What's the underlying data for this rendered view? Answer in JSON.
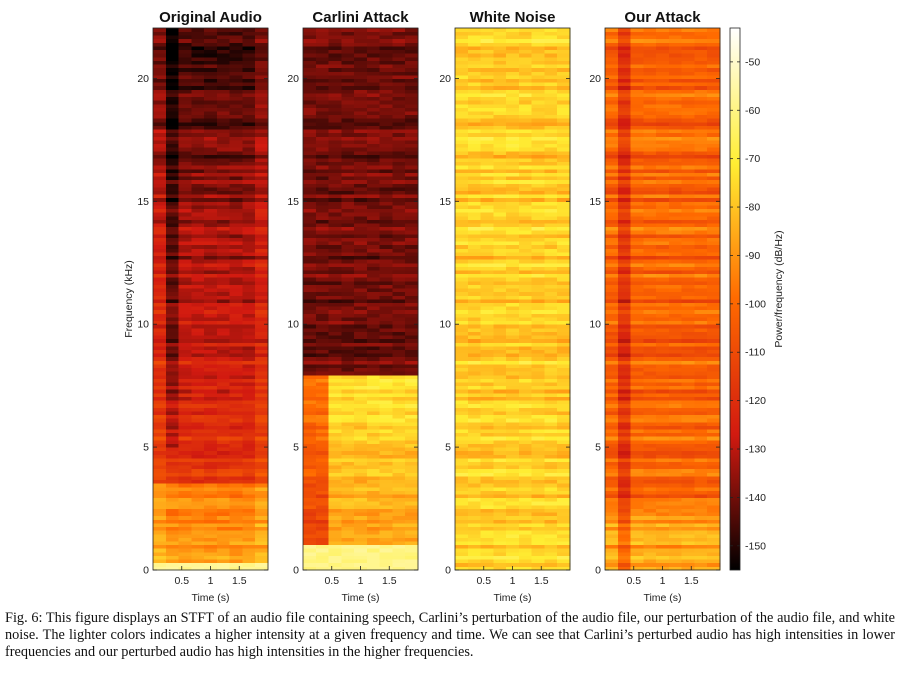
{
  "figure": {
    "caption": "Fig. 6: This figure displays an STFT of an audio file containing speech, Carlini’s perturbation of the audio file, our perturbation of the audio file, and white noise. The lighter colors indicates a higher intensity at a given frequency and time. We can see that Carlini’s perturbed audio has high intensities in lower frequencies and our perturbed audio has high intensities in the higher frequencies."
  },
  "chart_data": {
    "type": "heatmap",
    "panels": [
      {
        "title": "Original Audio"
      },
      {
        "title": "Carlini Attack"
      },
      {
        "title": "White Noise"
      },
      {
        "title": "Our Attack"
      }
    ],
    "xlabel": "Time (s)",
    "xticks": [
      "0.5",
      "1",
      "1.5"
    ],
    "xlim": [
      0,
      2.0
    ],
    "ylabel": "Frequency (kHz)",
    "yticks": [
      "0",
      "5",
      "10",
      "15",
      "20"
    ],
    "ylim": [
      0,
      22.05
    ],
    "colorbar": {
      "label": "Power/frequency (dB/Hz)",
      "ticks": [
        "-50",
        "-60",
        "-70",
        "-80",
        "-90",
        "-100",
        "-110",
        "-120",
        "-130",
        "-140",
        "-150"
      ],
      "range": [
        -155,
        -43
      ],
      "colormap": [
        "#000000",
        "#d21a10",
        "#ff6a00",
        "#ffee33",
        "#ffffff"
      ]
    }
  }
}
